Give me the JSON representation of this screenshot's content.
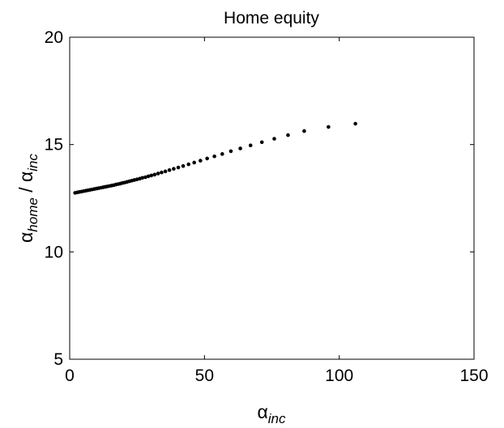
{
  "chart_data": {
    "type": "scatter",
    "title": "Home equity",
    "xlabel": {
      "base": "α",
      "sub": "inc"
    },
    "ylabel": {
      "base1": "α",
      "sub1": "home",
      "sep": " / ",
      "base2": "α",
      "sub2": "inc"
    },
    "xlim": [
      0,
      150
    ],
    "ylim": [
      5,
      20
    ],
    "xticks": [
      0,
      50,
      100,
      150
    ],
    "yticks": [
      5,
      10,
      15,
      20
    ],
    "xtick_labels": [
      "0",
      "50",
      "100",
      "150"
    ],
    "ytick_labels": [
      "5",
      "10",
      "15",
      "20"
    ],
    "grid": false,
    "legend": false,
    "marker_color": "#000000",
    "series": [
      {
        "points": [
          [
            2.0,
            12.75
          ],
          [
            2.8,
            12.77
          ],
          [
            3.6,
            12.79
          ],
          [
            4.4,
            12.81
          ],
          [
            5.2,
            12.83
          ],
          [
            6.0,
            12.85
          ],
          [
            6.8,
            12.87
          ],
          [
            7.6,
            12.89
          ],
          [
            8.4,
            12.91
          ],
          [
            9.2,
            12.93
          ],
          [
            10.0,
            12.95
          ],
          [
            10.8,
            12.97
          ],
          [
            11.6,
            12.99
          ],
          [
            12.4,
            13.01
          ],
          [
            13.2,
            13.03
          ],
          [
            14.0,
            13.05
          ],
          [
            14.8,
            13.07
          ],
          [
            15.6,
            13.09
          ],
          [
            16.4,
            13.11
          ],
          [
            17.2,
            13.14
          ],
          [
            18.0,
            13.16
          ],
          [
            18.8,
            13.18
          ],
          [
            19.6,
            13.21
          ],
          [
            20.4,
            13.23
          ],
          [
            21.3,
            13.26
          ],
          [
            22.2,
            13.29
          ],
          [
            23.1,
            13.32
          ],
          [
            24.0,
            13.35
          ],
          [
            25.0,
            13.38
          ],
          [
            26.0,
            13.41
          ],
          [
            27.0,
            13.45
          ],
          [
            28.1,
            13.48
          ],
          [
            29.2,
            13.52
          ],
          [
            30.3,
            13.56
          ],
          [
            31.5,
            13.6
          ],
          [
            32.8,
            13.65
          ],
          [
            34.1,
            13.7
          ],
          [
            35.5,
            13.75
          ],
          [
            37.0,
            13.81
          ],
          [
            38.6,
            13.87
          ],
          [
            40.3,
            13.93
          ],
          [
            42.1,
            14.0
          ],
          [
            44.1,
            14.08
          ],
          [
            46.2,
            14.16
          ],
          [
            48.5,
            14.25
          ],
          [
            51.0,
            14.35
          ],
          [
            53.7,
            14.45
          ],
          [
            56.6,
            14.56
          ],
          [
            59.8,
            14.69
          ],
          [
            63.3,
            14.82
          ],
          [
            67.1,
            14.96
          ],
          [
            71.3,
            15.11
          ],
          [
            75.9,
            15.27
          ],
          [
            81.0,
            15.44
          ],
          [
            87.0,
            15.63
          ],
          [
            96.0,
            15.82
          ],
          [
            106.0,
            15.97
          ]
        ]
      }
    ]
  }
}
